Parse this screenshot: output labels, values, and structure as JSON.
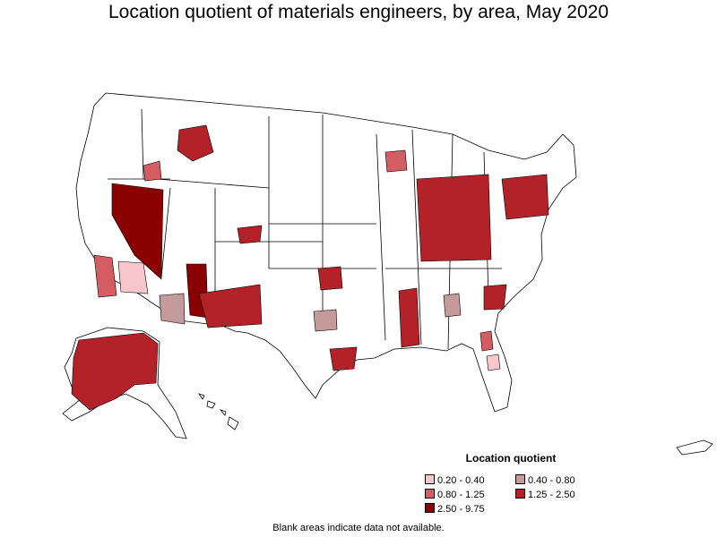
{
  "title": "Location quotient of materials engineers, by area, May 2020",
  "legend": {
    "title": "Location quotient",
    "items": [
      {
        "label": "0.20 - 0.40",
        "color": "#f9c6cc"
      },
      {
        "label": "0.80 - 1.25",
        "color": "#d45d64"
      },
      {
        "label": "2.50 - 9.75",
        "color": "#8b0000"
      },
      {
        "label": "0.40 - 0.80",
        "color": "#c49a9a"
      },
      {
        "label": "1.25 - 2.50",
        "color": "#b22228"
      }
    ]
  },
  "note": "Blank areas indicate data not available."
}
